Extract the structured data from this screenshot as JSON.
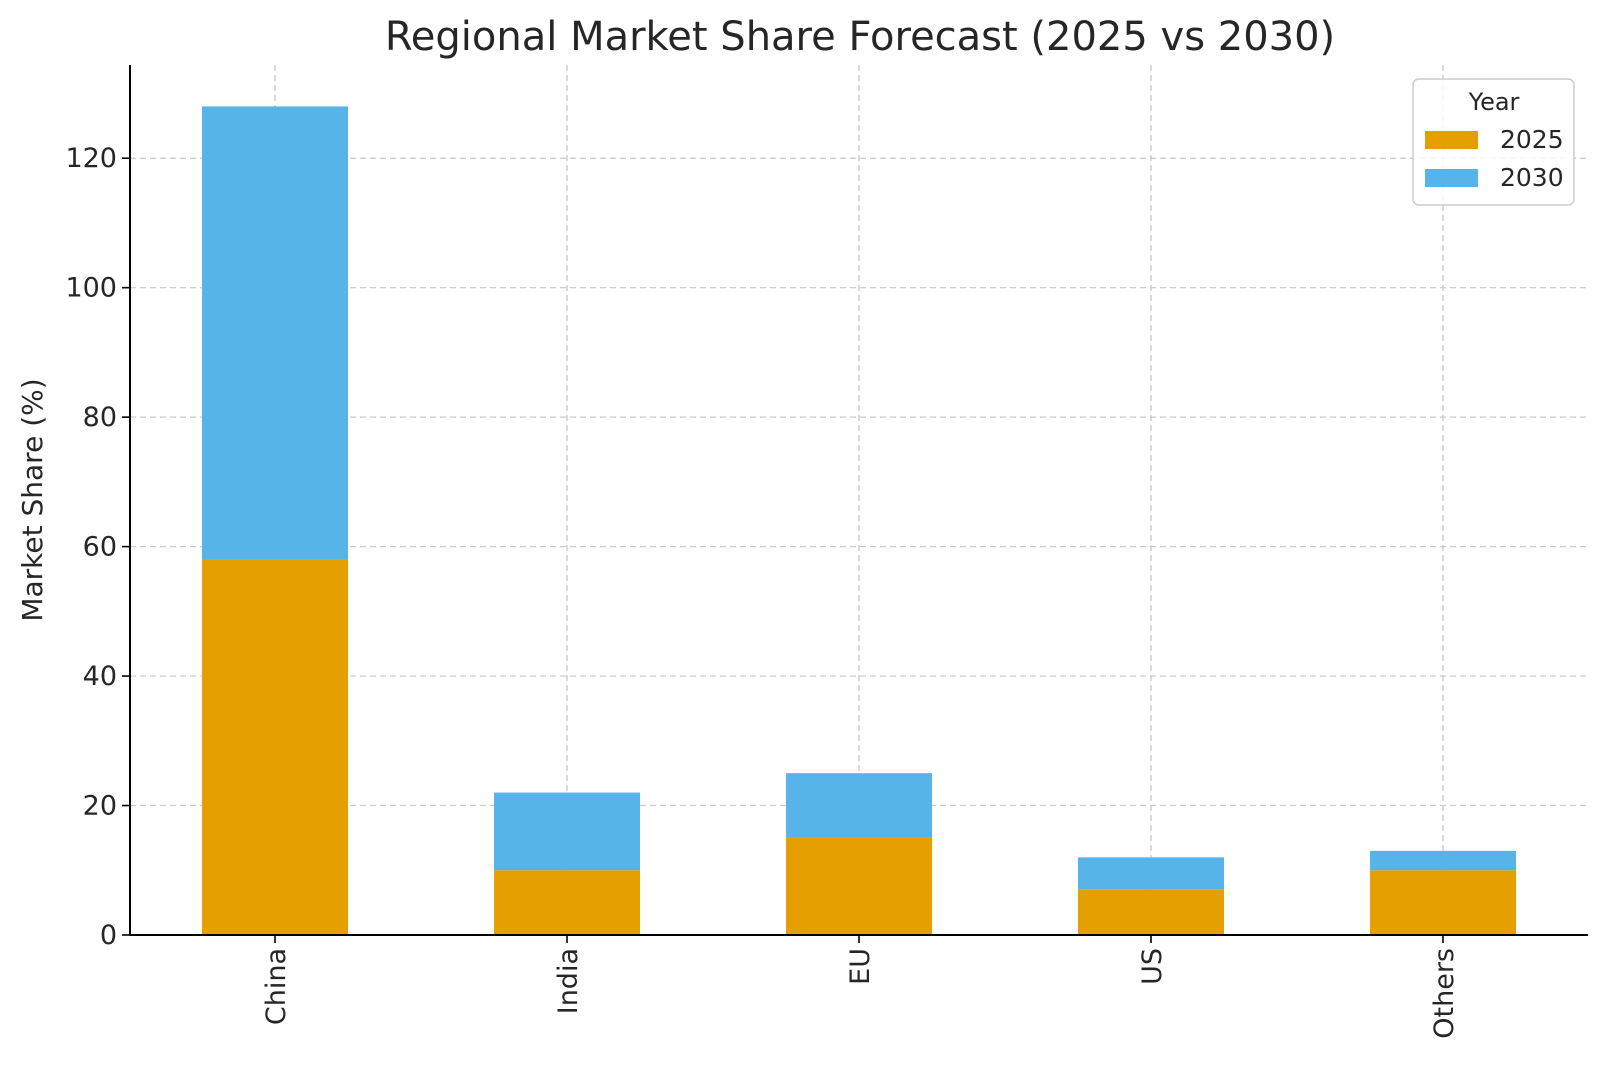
{
  "chart_data": {
    "type": "bar",
    "stacked": true,
    "title": "Regional Market Share Forecast (2025 vs 2030)",
    "xlabel": "",
    "ylabel": "Market Share (%)",
    "categories": [
      "China",
      "India",
      "EU",
      "US",
      "Others"
    ],
    "series": [
      {
        "name": "2025",
        "values": [
          58,
          10,
          15,
          7,
          10
        ],
        "color": "#E69F00"
      },
      {
        "name": "2030",
        "values": [
          70,
          12,
          10,
          5,
          3
        ],
        "color": "#56B4E9"
      }
    ],
    "ylim": [
      0,
      134.4
    ],
    "yticks": [
      0,
      20,
      40,
      60,
      80,
      100,
      120
    ],
    "grid": true,
    "legend": {
      "title": "Year",
      "placement": "top-right"
    }
  }
}
